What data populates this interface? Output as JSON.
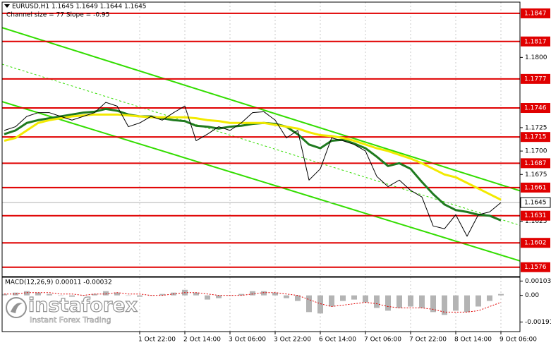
{
  "chart_data": [
    {
      "type": "line",
      "title": "EURUSD,H1 1.1645 1.1649 1.1644 1.1645",
      "subtitle": "Channel size = 77 Slope = -0.95",
      "categories": [
        null,
        null,
        null,
        null,
        null,
        null,
        null,
        null,
        null,
        null,
        null,
        null,
        "1 Oct 22:00",
        null,
        null,
        null,
        "2 Oct 14:00",
        null,
        null,
        null,
        "3 Oct 06:00",
        null,
        null,
        null,
        "3 Oct 22:00",
        null,
        null,
        null,
        "6 Oct 14:00",
        null,
        null,
        null,
        "7 Oct 06:00",
        null,
        null,
        null,
        "7 Oct 22:00",
        null,
        null,
        null,
        "8 Oct 14:00",
        null,
        null,
        null,
        "9 Oct 06:00"
      ],
      "series": [
        {
          "color": "#000000",
          "values": [
            1.1722,
            1.1726,
            1.1737,
            1.1741,
            1.1741,
            1.1737,
            1.1733,
            1.1737,
            1.1741,
            1.1752,
            1.1748,
            1.1726,
            1.173,
            1.1737,
            1.1733,
            1.1741,
            1.1748,
            1.1711,
            1.1718,
            1.1726,
            1.1722,
            1.173,
            1.1741,
            1.1742,
            1.1733,
            1.1714,
            1.1722,
            1.1669,
            1.1681,
            1.1714,
            1.1711,
            1.1707,
            1.17,
            1.1673,
            1.1662,
            1.1669,
            1.1658,
            1.1651,
            1.162,
            1.1617,
            1.1632,
            1.1609,
            1.1632,
            1.1635,
            1.1645
          ]
        },
        {
          "color": "#f2ea00",
          "values": [
            1.1711,
            1.1714,
            1.1722,
            1.173,
            1.1733,
            1.1735,
            1.1737,
            1.1738,
            1.1739,
            1.1739,
            1.1739,
            1.1738,
            1.1737,
            1.1736,
            1.1736,
            1.1736,
            1.1736,
            1.1735,
            1.1733,
            1.1732,
            1.173,
            1.173,
            1.173,
            1.173,
            1.1728,
            1.1726,
            1.1724,
            1.172,
            1.1717,
            1.1716,
            1.1714,
            1.1711,
            1.1707,
            1.1703,
            1.17,
            1.1696,
            1.1692,
            1.1687,
            1.1681,
            1.1675,
            1.1672,
            1.1666,
            1.166,
            1.1654,
            1.1648
          ]
        },
        {
          "color": "#1f7a1f",
          "values": [
            1.1718,
            1.1722,
            1.173,
            1.1733,
            1.1735,
            1.1737,
            1.1739,
            1.1741,
            1.1742,
            1.1745,
            1.1743,
            1.1739,
            1.1737,
            1.1737,
            1.1735,
            1.1733,
            1.1732,
            1.1727,
            1.1726,
            1.1724,
            1.1726,
            1.1727,
            1.1729,
            1.173,
            1.1729,
            1.1726,
            1.1718,
            1.1707,
            1.1703,
            1.1711,
            1.1712,
            1.1708,
            1.1703,
            1.1694,
            1.1684,
            1.1687,
            1.1681,
            1.1667,
            1.1654,
            1.1643,
            1.1637,
            1.1635,
            1.1632,
            1.1631,
            1.1626
          ]
        }
      ],
      "channel": {
        "color": "#33dd00",
        "upper": [
          1.1831,
          1.1664
        ],
        "middle": [
          1.1792,
          1.1627
        ],
        "lower": [
          1.1752,
          1.1589
        ]
      },
      "levels": [
        1.1847,
        1.1817,
        1.1777,
        1.1746,
        1.1715,
        1.1687,
        1.1661,
        1.1631,
        1.1602,
        1.1576
      ],
      "level_color": "#e00000",
      "current_price": 1.1645,
      "ylim": [
        1.1566,
        1.1859
      ],
      "yticks": [
        {
          "value": 1.18,
          "label": "1.1800"
        },
        {
          "value": 1.1725,
          "label": "1.1725"
        },
        {
          "value": 1.17,
          "label": "1.1700"
        },
        {
          "value": 1.1675,
          "label": "1.1675"
        },
        {
          "value": 1.1625,
          "label": "1.1625"
        }
      ]
    },
    {
      "type": "bar",
      "title": "MACD(12,26,9) 0.00011 -0.00032",
      "color": "#b4b4b4",
      "values": [
        0.0001,
        0.0002,
        0.0003,
        0.0002,
        0.0001,
        0,
        -0.0001,
        0,
        0.0001,
        0.0003,
        0.0002,
        0,
        -0.0001,
        0,
        0.0001,
        0.0002,
        0.0004,
        0.0002,
        -0.0003,
        -0.0002,
        0,
        0.0001,
        0.0003,
        0.0003,
        0.0002,
        -0.0002,
        -0.0004,
        -0.0012,
        -0.0013,
        -0.0008,
        -0.0004,
        -0.0003,
        -0.0005,
        -0.0009,
        -0.0011,
        -0.0009,
        -0.0008,
        -0.0009,
        -0.0012,
        -0.0014,
        -0.0011,
        -0.0012,
        -0.0008,
        -0.0004,
        0.0001
      ],
      "signal": {
        "color": "#e00000",
        "values": [
          0.0001,
          0.0001,
          0.0002,
          0.0002,
          0.0002,
          0.0001,
          0.0001,
          0,
          0.0001,
          0.0001,
          0.0002,
          0.0001,
          0.0001,
          0,
          0,
          0.0001,
          0.0002,
          0.0002,
          0.0001,
          0,
          0,
          0,
          0.0001,
          0.0002,
          0.0002,
          0.0001,
          0,
          -0.0003,
          -0.0006,
          -0.0008,
          -0.0007,
          -0.0006,
          -0.0005,
          -0.0006,
          -0.0008,
          -0.0009,
          -0.0009,
          -0.0009,
          -0.001,
          -0.0012,
          -0.0012,
          -0.0012,
          -0.0011,
          -0.0008,
          -0.0005
        ]
      },
      "ylim": [
        -0.0026,
        0.0013
      ],
      "yticks": [
        0.00103,
        {
          "value": 0,
          "label": "0.00"
        },
        -0.00191
      ]
    }
  ],
  "watermark": {
    "name": "instaforex",
    "slogan": "Instant Forex Trading"
  }
}
